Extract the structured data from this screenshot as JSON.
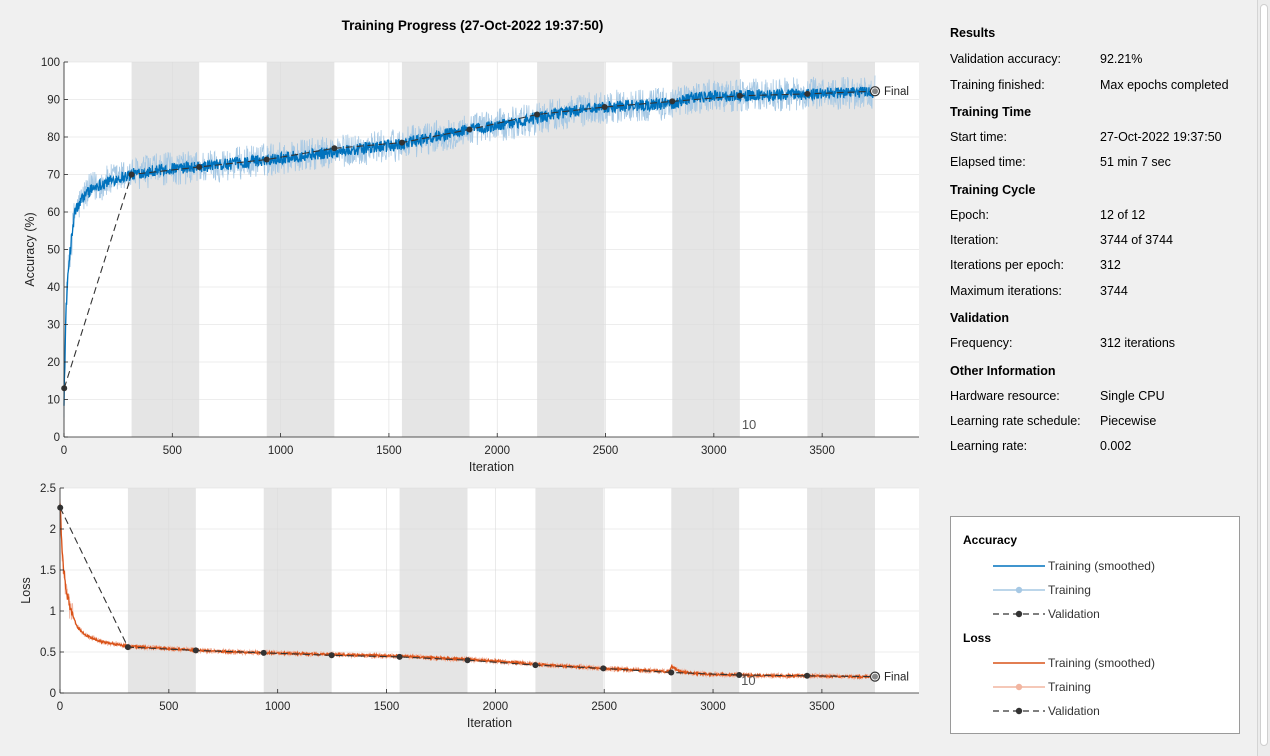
{
  "title": "Training Progress (27-Oct-2022 19:37:50)",
  "info": {
    "results_h": "Results",
    "val_acc_l": "Validation accuracy:",
    "val_acc_v": "92.21%",
    "finished_l": "Training finished:",
    "finished_v": "Max epochs completed",
    "time_h": "Training Time",
    "start_l": "Start time:",
    "start_v": "27-Oct-2022 19:37:50",
    "elapsed_l": "Elapsed time:",
    "elapsed_v": "51 min 7 sec",
    "cycle_h": "Training Cycle",
    "epoch_l": "Epoch:",
    "epoch_v": "12 of 12",
    "iter_l": "Iteration:",
    "iter_v": "3744 of 3744",
    "ipe_l": "Iterations per epoch:",
    "ipe_v": "312",
    "maxit_l": "Maximum iterations:",
    "maxit_v": "3744",
    "val_h": "Validation",
    "freq_l": "Frequency:",
    "freq_v": "312 iterations",
    "other_h": "Other Information",
    "hw_l": "Hardware resource:",
    "hw_v": "Single CPU",
    "lrs_l": "Learning rate schedule:",
    "lrs_v": "Piecewise",
    "lr_l": "Learning rate:",
    "lr_v": "0.002"
  },
  "legend": {
    "acc_h": "Accuracy",
    "acc_smooth": "Training (smoothed)",
    "acc_train": "Training",
    "acc_val": "Validation",
    "loss_h": "Loss",
    "loss_smooth": "Training (smoothed)",
    "loss_train": "Training",
    "loss_val": "Validation"
  },
  "colors": {
    "acc_smooth": "#0072bd",
    "acc_raw": "#a6c8e4",
    "loss_smooth": "#d95319",
    "loss_raw": "#f2b5a0",
    "validation": "#333333",
    "band": "#e5e5e5"
  },
  "chart_data": [
    {
      "type": "line",
      "ylabel": "Accuracy (%)",
      "xlabel": "Iteration",
      "xlim": [
        0,
        3744
      ],
      "ylim": [
        0,
        100
      ],
      "xticks": [
        0,
        500,
        1000,
        1500,
        2000,
        2500,
        3000,
        3500
      ],
      "yticks": [
        0,
        10,
        20,
        30,
        40,
        50,
        60,
        70,
        80,
        90,
        100
      ],
      "epoch_iterations": 312,
      "epoch_marker": "10",
      "final_label": "Final",
      "validation": {
        "x": [
          1,
          312,
          624,
          936,
          1248,
          1560,
          1872,
          2184,
          2496,
          2808,
          3120,
          3432,
          3744
        ],
        "y": [
          13,
          70,
          72,
          74,
          77,
          78.5,
          82,
          86,
          88,
          89.5,
          91,
          91.5,
          92.21
        ]
      },
      "training_smoothed": {
        "x": [
          0,
          10,
          25,
          50,
          100,
          150,
          200,
          250,
          312,
          400,
          500,
          624,
          800,
          936,
          1100,
          1248,
          1400,
          1560,
          1700,
          1872,
          2000,
          2184,
          2300,
          2496,
          2650,
          2808,
          2900,
          3000,
          3120,
          3300,
          3432,
          3600,
          3744
        ],
        "y": [
          10,
          35,
          48,
          60,
          65,
          67,
          68,
          69,
          70,
          71,
          71.5,
          72,
          73,
          74,
          75,
          76,
          77,
          78,
          80,
          82,
          83,
          85,
          86.5,
          88,
          88.5,
          89,
          90.5,
          91,
          91,
          91.3,
          91.5,
          91.8,
          92
        ]
      }
    },
    {
      "type": "line",
      "ylabel": "Loss",
      "xlabel": "Iteration",
      "xlim": [
        0,
        3744
      ],
      "ylim": [
        0,
        2.5
      ],
      "xticks": [
        0,
        500,
        1000,
        1500,
        2000,
        2500,
        3000,
        3500
      ],
      "yticks": [
        0,
        0.5,
        1,
        1.5,
        2,
        2.5
      ],
      "yticklabels": [
        "0",
        "0.5",
        "1",
        "1.5",
        "2",
        "2.5"
      ],
      "epoch_iterations": 312,
      "epoch_marker": "10",
      "final_label": "Final",
      "validation": {
        "x": [
          1,
          312,
          624,
          936,
          1248,
          1560,
          1872,
          2184,
          2496,
          2808,
          3120,
          3432,
          3744
        ],
        "y": [
          2.26,
          0.56,
          0.52,
          0.49,
          0.46,
          0.44,
          0.4,
          0.34,
          0.3,
          0.25,
          0.22,
          0.21,
          0.2
        ]
      },
      "training_smoothed": {
        "x": [
          0,
          10,
          25,
          50,
          80,
          120,
          200,
          312,
          500,
          624,
          800,
          936,
          1100,
          1248,
          1400,
          1560,
          1700,
          1872,
          2000,
          2184,
          2300,
          2496,
          2650,
          2800,
          2810,
          2850,
          2950,
          3120,
          3300,
          3432,
          3600,
          3744
        ],
        "y": [
          2.35,
          1.7,
          1.3,
          1.0,
          0.8,
          0.7,
          0.62,
          0.57,
          0.54,
          0.52,
          0.5,
          0.49,
          0.48,
          0.47,
          0.46,
          0.45,
          0.43,
          0.41,
          0.39,
          0.35,
          0.33,
          0.3,
          0.28,
          0.26,
          0.32,
          0.26,
          0.23,
          0.22,
          0.21,
          0.21,
          0.2,
          0.2
        ]
      }
    }
  ]
}
